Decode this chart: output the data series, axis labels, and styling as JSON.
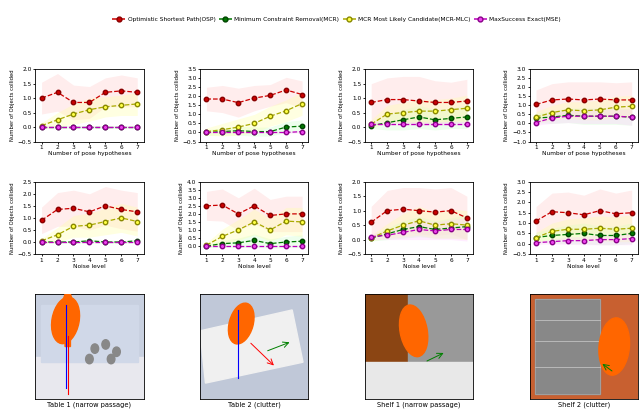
{
  "x": [
    1,
    2,
    3,
    4,
    5,
    6,
    7
  ],
  "legend": {
    "OSP": {
      "label": "Optimistic Shortest Path(OSP)"
    },
    "MCR": {
      "label": "Minimum Constraint Removal(MCR)"
    },
    "MCRMLC": {
      "label": "MCR Most Likely Candidate(MCR-MLC)"
    },
    "MSE": {
      "label": "MaxSuccess Exact(MSE)"
    }
  },
  "subplot_titles": [
    "Table 1 (narrow passage)",
    "Table 2 (clutter)",
    "Shelf 1 (narrow passage)",
    "Shelf 2 (clutter)"
  ],
  "row1_xlabel": "Number of pose hypotheses",
  "row2_xlabel": "Noise level",
  "ylabel": "Number of Objects collided",
  "colors": {
    "OSP": "#cc0000",
    "MCR": "#007700",
    "MCRMLC": "#aaaa00",
    "MSE": "#bb00bb"
  },
  "fill_alpha": 0.35,
  "plots": {
    "table1_hyp": {
      "OSP": {
        "mean": [
          1.0,
          1.2,
          0.85,
          0.85,
          1.2,
          1.25,
          1.2
        ],
        "std": [
          0.55,
          0.65,
          0.6,
          0.55,
          0.5,
          0.55,
          0.5
        ]
      },
      "MCR": {
        "mean": [
          0.0,
          0.0,
          0.0,
          0.0,
          0.0,
          0.0,
          0.0
        ],
        "std": [
          0.05,
          0.05,
          0.05,
          0.05,
          0.05,
          0.05,
          0.05
        ]
      },
      "MCRMLC": {
        "mean": [
          0.05,
          0.25,
          0.45,
          0.6,
          0.7,
          0.75,
          0.8
        ],
        "std": [
          0.1,
          0.25,
          0.35,
          0.4,
          0.35,
          0.35,
          0.4
        ]
      },
      "MSE": {
        "mean": [
          0.0,
          0.0,
          0.0,
          0.0,
          0.0,
          0.0,
          0.0
        ],
        "std": [
          0.02,
          0.02,
          0.02,
          0.02,
          0.02,
          0.02,
          0.02
        ]
      },
      "ylim": [
        -0.5,
        2.0
      ],
      "yticks": [
        -0.5,
        0.0,
        0.5,
        1.0,
        1.5,
        2.0
      ]
    },
    "table2_hyp": {
      "OSP": {
        "mean": [
          1.85,
          1.85,
          1.65,
          1.9,
          2.05,
          2.35,
          2.1
        ],
        "std": [
          0.65,
          0.75,
          0.8,
          0.7,
          0.6,
          0.7,
          0.75
        ]
      },
      "MCR": {
        "mean": [
          0.0,
          0.05,
          0.1,
          0.05,
          0.05,
          0.3,
          0.35
        ],
        "std": [
          0.15,
          0.2,
          0.25,
          0.25,
          0.25,
          0.3,
          0.35
        ]
      },
      "MCRMLC": {
        "mean": [
          0.05,
          0.15,
          0.3,
          0.5,
          0.9,
          1.2,
          1.6
        ],
        "std": [
          0.2,
          0.35,
          0.45,
          0.5,
          0.55,
          0.6,
          0.65
        ]
      },
      "MSE": {
        "mean": [
          0.0,
          0.0,
          0.0,
          0.0,
          0.0,
          0.0,
          0.05
        ],
        "std": [
          0.02,
          0.02,
          0.02,
          0.02,
          0.02,
          0.05,
          0.08
        ]
      },
      "ylim": [
        -0.5,
        3.5
      ],
      "yticks": [
        -0.5,
        0.0,
        0.5,
        1.0,
        1.5,
        2.0,
        2.5,
        3.0,
        3.5
      ]
    },
    "shelf1_hyp": {
      "OSP": {
        "mean": [
          0.85,
          0.95,
          0.95,
          0.9,
          0.85,
          0.85,
          0.9
        ],
        "std": [
          0.65,
          0.75,
          0.8,
          0.85,
          0.75,
          0.7,
          0.75
        ]
      },
      "MCR": {
        "mean": [
          0.05,
          0.15,
          0.25,
          0.35,
          0.25,
          0.3,
          0.35
        ],
        "std": [
          0.1,
          0.25,
          0.35,
          0.4,
          0.35,
          0.35,
          0.4
        ]
      },
      "MCRMLC": {
        "mean": [
          0.1,
          0.45,
          0.5,
          0.55,
          0.55,
          0.6,
          0.65
        ],
        "std": [
          0.15,
          0.3,
          0.35,
          0.4,
          0.4,
          0.4,
          0.45
        ]
      },
      "MSE": {
        "mean": [
          0.1,
          0.1,
          0.1,
          0.1,
          0.1,
          0.1,
          0.1
        ],
        "std": [
          0.06,
          0.06,
          0.06,
          0.06,
          0.06,
          0.06,
          0.06
        ]
      },
      "ylim": [
        -0.5,
        2.0
      ],
      "yticks": [
        -0.5,
        0.0,
        0.5,
        1.0,
        1.5,
        2.0
      ]
    },
    "shelf2_hyp": {
      "OSP": {
        "mean": [
          1.05,
          1.3,
          1.35,
          1.3,
          1.35,
          1.3,
          1.3
        ],
        "std": [
          0.8,
          0.9,
          0.95,
          1.0,
          0.95,
          0.95,
          1.0
        ]
      },
      "MCR": {
        "mean": [
          0.3,
          0.35,
          0.45,
          0.4,
          0.4,
          0.4,
          0.35
        ],
        "std": [
          0.25,
          0.35,
          0.4,
          0.45,
          0.45,
          0.45,
          0.45
        ]
      },
      "MCRMLC": {
        "mean": [
          0.35,
          0.6,
          0.75,
          0.7,
          0.75,
          0.9,
          0.95
        ],
        "std": [
          0.3,
          0.4,
          0.45,
          0.5,
          0.55,
          0.6,
          0.6
        ]
      },
      "MSE": {
        "mean": [
          0.05,
          0.3,
          0.4,
          0.4,
          0.4,
          0.4,
          0.35
        ],
        "std": [
          0.15,
          0.3,
          0.35,
          0.4,
          0.4,
          0.4,
          0.45
        ]
      },
      "ylim": [
        -1.0,
        3.0
      ],
      "yticks": [
        -1.0,
        -0.5,
        0.0,
        0.5,
        1.0,
        1.5,
        2.0,
        2.5,
        3.0
      ]
    },
    "table1_noise": {
      "OSP": {
        "mean": [
          0.9,
          1.35,
          1.4,
          1.25,
          1.5,
          1.35,
          1.25
        ],
        "std": [
          0.55,
          0.7,
          0.75,
          0.75,
          0.8,
          0.8,
          0.8
        ]
      },
      "MCR": {
        "mean": [
          0.0,
          0.0,
          0.0,
          0.05,
          0.0,
          0.0,
          0.05
        ],
        "std": [
          0.05,
          0.05,
          0.06,
          0.08,
          0.06,
          0.06,
          0.08
        ]
      },
      "MCRMLC": {
        "mean": [
          0.05,
          0.3,
          0.65,
          0.7,
          0.85,
          1.0,
          0.85
        ],
        "std": [
          0.1,
          0.3,
          0.45,
          0.5,
          0.55,
          0.6,
          0.6
        ]
      },
      "MSE": {
        "mean": [
          0.0,
          0.0,
          0.0,
          0.0,
          0.0,
          0.0,
          0.0
        ],
        "std": [
          0.02,
          0.02,
          0.02,
          0.02,
          0.02,
          0.02,
          0.02
        ]
      },
      "ylim": [
        -0.5,
        2.5
      ],
      "yticks": [
        -0.5,
        0.0,
        0.5,
        1.0,
        1.5,
        2.0,
        2.5
      ]
    },
    "table2_noise": {
      "OSP": {
        "mean": [
          2.5,
          2.55,
          2.0,
          2.5,
          1.9,
          2.0,
          2.0
        ],
        "std": [
          0.9,
          1.0,
          1.0,
          1.1,
          1.0,
          1.1,
          1.1
        ]
      },
      "MCR": {
        "mean": [
          0.0,
          0.15,
          0.2,
          0.35,
          0.15,
          0.25,
          0.3
        ],
        "std": [
          0.1,
          0.2,
          0.3,
          0.4,
          0.3,
          0.35,
          0.4
        ]
      },
      "MCRMLC": {
        "mean": [
          0.05,
          0.6,
          1.0,
          1.5,
          1.0,
          1.55,
          1.5
        ],
        "std": [
          0.15,
          0.45,
          0.65,
          0.8,
          0.7,
          0.85,
          0.9
        ]
      },
      "MSE": {
        "mean": [
          0.0,
          0.0,
          0.0,
          0.0,
          0.0,
          0.0,
          0.0
        ],
        "std": [
          0.03,
          0.05,
          0.05,
          0.05,
          0.05,
          0.05,
          0.05
        ]
      },
      "ylim": [
        -0.5,
        4.0
      ],
      "yticks": [
        0.0,
        0.5,
        1.0,
        1.5,
        2.0,
        2.5,
        3.0,
        3.5,
        4.0
      ]
    },
    "shelf1_noise": {
      "OSP": {
        "mean": [
          0.6,
          1.0,
          1.05,
          1.0,
          0.95,
          1.0,
          0.75
        ],
        "std": [
          0.55,
          0.7,
          0.75,
          0.8,
          0.8,
          0.8,
          0.75
        ]
      },
      "MCR": {
        "mean": [
          0.05,
          0.2,
          0.35,
          0.45,
          0.35,
          0.4,
          0.45
        ],
        "std": [
          0.1,
          0.2,
          0.3,
          0.35,
          0.3,
          0.35,
          0.4
        ]
      },
      "MCRMLC": {
        "mean": [
          0.05,
          0.3,
          0.5,
          0.65,
          0.5,
          0.55,
          0.5
        ],
        "std": [
          0.1,
          0.25,
          0.4,
          0.5,
          0.45,
          0.5,
          0.5
        ]
      },
      "MSE": {
        "mean": [
          0.1,
          0.15,
          0.25,
          0.35,
          0.3,
          0.35,
          0.35
        ],
        "std": [
          0.1,
          0.15,
          0.25,
          0.35,
          0.3,
          0.35,
          0.4
        ]
      },
      "ylim": [
        -0.5,
        2.0
      ],
      "yticks": [
        -0.5,
        0.0,
        0.5,
        1.0,
        1.5,
        2.0
      ]
    },
    "shelf2_noise": {
      "OSP": {
        "mean": [
          1.1,
          1.55,
          1.5,
          1.4,
          1.6,
          1.45,
          1.5
        ],
        "std": [
          0.7,
          0.9,
          1.0,
          0.95,
          1.05,
          1.0,
          1.1
        ]
      },
      "MCR": {
        "mean": [
          0.3,
          0.4,
          0.45,
          0.5,
          0.4,
          0.4,
          0.5
        ],
        "std": [
          0.25,
          0.35,
          0.45,
          0.5,
          0.45,
          0.45,
          0.5
        ]
      },
      "MCRMLC": {
        "mean": [
          0.3,
          0.6,
          0.7,
          0.7,
          0.75,
          0.7,
          0.75
        ],
        "std": [
          0.25,
          0.4,
          0.5,
          0.55,
          0.6,
          0.6,
          0.65
        ]
      },
      "MSE": {
        "mean": [
          0.05,
          0.1,
          0.15,
          0.15,
          0.2,
          0.2,
          0.25
        ],
        "std": [
          0.08,
          0.12,
          0.18,
          0.2,
          0.25,
          0.25,
          0.3
        ]
      },
      "ylim": [
        -0.5,
        3.0
      ],
      "yticks": [
        -0.5,
        0.0,
        0.5,
        1.0,
        1.5,
        2.0,
        2.5,
        3.0
      ]
    }
  },
  "image_bg_colors": [
    "#c8d0e0",
    "#c8d0e0",
    "#b0b8c8",
    "#b0b8c8"
  ],
  "image_labels": [
    "Table 1 (narrow passage)",
    "Table 2 (clutter)",
    "Shelf 1 (narrow passage)",
    "Shelf 2 (clutter)"
  ]
}
